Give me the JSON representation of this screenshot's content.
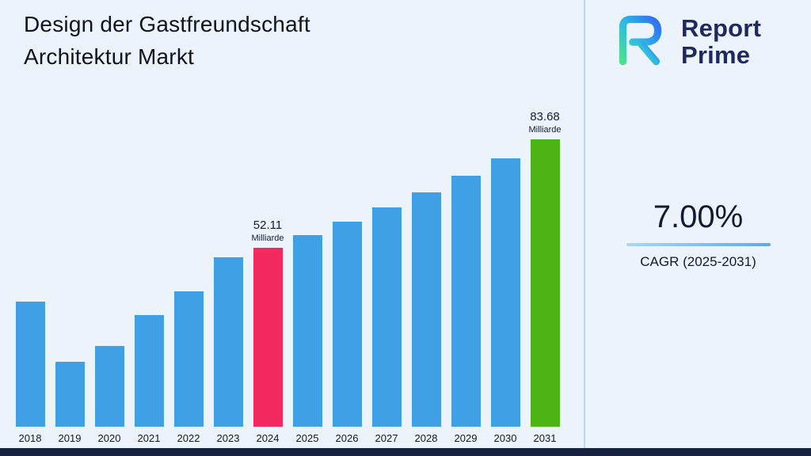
{
  "title": {
    "line1": "Design der Gastfreundschaft",
    "line2": "Architektur Markt"
  },
  "logo": {
    "line1": "Report",
    "line2": "Prime"
  },
  "cagr": {
    "value": "7.00%",
    "label": "CAGR (2025-2031)"
  },
  "colors": {
    "background": "#edf3fb",
    "bar_default": "#3fa0e6",
    "bar_2024": "#f32a60",
    "bar_2031": "#4cb414",
    "navy": "#1e2a5e",
    "footer": "#16203f"
  },
  "chart_data": {
    "type": "bar",
    "title": "Design der Gastfreundschaft Architektur Markt",
    "xlabel": "",
    "ylabel": "Milliarde",
    "unit": "Milliarde",
    "ylim": [
      0,
      90
    ],
    "grid": false,
    "categories": [
      "2018",
      "2019",
      "2020",
      "2021",
      "2022",
      "2023",
      "2024",
      "2025",
      "2026",
      "2027",
      "2028",
      "2029",
      "2030",
      "2031"
    ],
    "values": [
      36.5,
      19.0,
      23.5,
      32.5,
      39.5,
      49.5,
      52.11,
      55.76,
      59.66,
      63.84,
      68.31,
      73.09,
      78.21,
      83.68
    ],
    "bar_default_color": "#3fa0e6",
    "bar_colors": {
      "2024": "#f32a60",
      "2031": "#4cb414"
    },
    "annotations": [
      {
        "category": "2024",
        "value_label": "52.11",
        "unit_label": "Milliarde"
      },
      {
        "category": "2031",
        "value_label": "83.68",
        "unit_label": "Milliarde"
      }
    ]
  }
}
